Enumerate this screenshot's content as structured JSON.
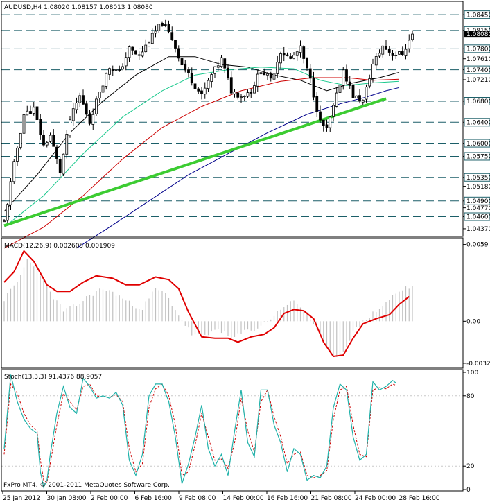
{
  "chart_data": {
    "type": "candlestick",
    "main": {
      "title": "AUDUSD,H4",
      "ohlc_readout": [
        "1.08020",
        "1.08157",
        "1.08013",
        "1.08080"
      ],
      "ylim": [
        1.0425,
        1.0865
      ],
      "level_lines": [
        1.0845,
        1.0815,
        1.078,
        1.074,
        1.068,
        1.064,
        1.06,
        1.0575,
        1.0535,
        1.049,
        1.046
      ],
      "tick_labels": [
        "1.08450",
        "1.08150",
        "1.07800",
        "1.07610",
        "1.07400",
        "1.07210",
        "1.06800",
        "1.06400",
        "1.06000",
        "1.05750",
        "1.05350",
        "1.05180",
        "1.04900",
        "1.04770",
        "1.04600",
        "1.04370"
      ],
      "boxed_labels": [
        "1.08450",
        "1.08150",
        "1.07800",
        "1.07400",
        "1.06800",
        "1.06400",
        "1.06000",
        "1.05750",
        "1.05350",
        "1.04900",
        "1.04600"
      ],
      "current_price": "1.08080",
      "trendline": {
        "start": [
          0,
          1.0443
        ],
        "end": [
          116,
          1.0685
        ]
      },
      "key_prices": [
        [
          0,
          1.045
        ],
        [
          3,
          1.056
        ],
        [
          6,
          1.0655
        ],
        [
          9,
          1.0665
        ],
        [
          12,
          1.0595
        ],
        [
          14,
          1.0615
        ],
        [
          17,
          1.0545
        ],
        [
          20,
          1.0645
        ],
        [
          23,
          1.069
        ],
        [
          26,
          1.064
        ],
        [
          29,
          1.07
        ],
        [
          32,
          1.0745
        ],
        [
          35,
          1.0735
        ],
        [
          38,
          1.078
        ],
        [
          41,
          1.0765
        ],
        [
          44,
          1.0795
        ],
        [
          48,
          1.083
        ],
        [
          51,
          1.08
        ],
        [
          54,
          1.075
        ],
        [
          57,
          1.072
        ],
        [
          60,
          1.069
        ],
        [
          63,
          1.073
        ],
        [
          66,
          1.076
        ],
        [
          69,
          1.07
        ],
        [
          72,
          1.069
        ],
        [
          75,
          1.07
        ],
        [
          78,
          1.074
        ],
        [
          81,
          1.072
        ],
        [
          84,
          1.0775
        ],
        [
          87,
          1.076
        ],
        [
          90,
          1.078
        ],
        [
          93,
          1.072
        ],
        [
          96,
          1.064
        ],
        [
          98,
          1.0625
        ],
        [
          101,
          1.069
        ],
        [
          103,
          1.074
        ],
        [
          106,
          1.069
        ],
        [
          109,
          1.068
        ],
        [
          112,
          1.075
        ],
        [
          115,
          1.0785
        ],
        [
          118,
          1.077
        ],
        [
          121,
          1.077
        ],
        [
          124,
          1.0808
        ]
      ],
      "moving_averages": [
        {
          "color": "#000000",
          "points": [
            [
              0,
              1.047
            ],
            [
              10,
              1.054
            ],
            [
              20,
              1.062
            ],
            [
              30,
              1.068
            ],
            [
              40,
              1.073
            ],
            [
              50,
              1.0765
            ],
            [
              58,
              1.0765
            ],
            [
              66,
              1.075
            ],
            [
              74,
              1.0745
            ],
            [
              82,
              1.073
            ],
            [
              90,
              1.072
            ],
            [
              98,
              1.07
            ],
            [
              106,
              1.0715
            ],
            [
              114,
              1.0725
            ],
            [
              120,
              1.0735
            ]
          ]
        },
        {
          "color": "#19c88c",
          "points": [
            [
              0,
              1.044
            ],
            [
              12,
              1.05
            ],
            [
              24,
              1.058
            ],
            [
              36,
              1.065
            ],
            [
              48,
              1.07
            ],
            [
              58,
              1.073
            ],
            [
              68,
              1.074
            ],
            [
              78,
              1.0745
            ],
            [
              88,
              1.0742
            ],
            [
              96,
              1.072
            ],
            [
              104,
              1.071
            ],
            [
              112,
              1.0715
            ],
            [
              120,
              1.0718
            ]
          ]
        },
        {
          "color": "#cc0000",
          "points": [
            [
              0,
              1.04
            ],
            [
              12,
              1.044
            ],
            [
              24,
              1.05
            ],
            [
              36,
              1.057
            ],
            [
              48,
              1.063
            ],
            [
              60,
              1.067
            ],
            [
              72,
              1.07
            ],
            [
              84,
              1.0718
            ],
            [
              94,
              1.0725
            ],
            [
              104,
              1.0725
            ],
            [
              112,
              1.072
            ],
            [
              120,
              1.0722
            ]
          ]
        },
        {
          "color": "#00008b",
          "points": [
            [
              22,
              1.04
            ],
            [
              32,
              1.044
            ],
            [
              44,
              1.049
            ],
            [
              56,
              1.054
            ],
            [
              68,
              1.058
            ],
            [
              80,
              1.062
            ],
            [
              92,
              1.0655
            ],
            [
              102,
              1.0675
            ],
            [
              110,
              1.0688
            ],
            [
              116,
              1.07
            ],
            [
              120,
              1.0706
            ]
          ]
        }
      ]
    },
    "macd": {
      "label": "MACD(12,26,9) 0.002605 0.001909",
      "ylim": [
        -0.0035,
        0.0062
      ],
      "tick_labels": [
        "0.0059",
        "0.00",
        "-0.00323"
      ],
      "bar_key": [
        [
          0,
          0.0017
        ],
        [
          4,
          0.003
        ],
        [
          7,
          0.0047
        ],
        [
          10,
          0.0042
        ],
        [
          14,
          0.0022
        ],
        [
          18,
          0.0008
        ],
        [
          22,
          0.0012
        ],
        [
          26,
          0.002
        ],
        [
          30,
          0.0025
        ],
        [
          34,
          0.0021
        ],
        [
          38,
          0.0014
        ],
        [
          42,
          0.001
        ],
        [
          46,
          0.0025
        ],
        [
          49,
          0.0021
        ],
        [
          53,
          0.0005
        ],
        [
          57,
          -0.001
        ],
        [
          61,
          -0.0012
        ],
        [
          65,
          -0.0005
        ],
        [
          69,
          -0.0014
        ],
        [
          73,
          -0.0008
        ],
        [
          77,
          -0.0005
        ],
        [
          81,
          0.0002
        ],
        [
          85,
          0.0012
        ],
        [
          88,
          0.0015
        ],
        [
          92,
          0.0007
        ],
        [
          96,
          -0.0012
        ],
        [
          99,
          -0.0025
        ],
        [
          102,
          -0.0027
        ],
        [
          106,
          -0.0009
        ],
        [
          110,
          0.0002
        ],
        [
          114,
          0.001
        ],
        [
          118,
          0.0019
        ],
        [
          122,
          0.0026
        ]
      ],
      "signal_key": [
        [
          0,
          0.003
        ],
        [
          3,
          0.0038
        ],
        [
          6,
          0.0054
        ],
        [
          9,
          0.0046
        ],
        [
          13,
          0.0028
        ],
        [
          16,
          0.0023
        ],
        [
          20,
          0.0023
        ],
        [
          24,
          0.003
        ],
        [
          28,
          0.0035
        ],
        [
          33,
          0.0033
        ],
        [
          37,
          0.0028
        ],
        [
          41,
          0.0028
        ],
        [
          46,
          0.0034
        ],
        [
          50,
          0.0032
        ],
        [
          53,
          0.0025
        ],
        [
          56,
          0.0007
        ],
        [
          60,
          -0.0012
        ],
        [
          64,
          -0.0013
        ],
        [
          68,
          -0.0013
        ],
        [
          71,
          -0.0016
        ],
        [
          75,
          -0.0012
        ],
        [
          79,
          -0.001
        ],
        [
          82,
          -0.0005
        ],
        [
          85,
          0.0006
        ],
        [
          88,
          0.0009
        ],
        [
          91,
          0.0008
        ],
        [
          94,
          0.0002
        ],
        [
          97,
          -0.0016
        ],
        [
          100,
          -0.0027
        ],
        [
          103,
          -0.0026
        ],
        [
          106,
          -0.0013
        ],
        [
          109,
          -0.0002
        ],
        [
          113,
          0.0002
        ],
        [
          117,
          0.0005
        ],
        [
          120,
          0.0013
        ],
        [
          123,
          0.0019
        ]
      ]
    },
    "stoch": {
      "label": "Stoch(13,3,3) 91.4376 88.9057",
      "ylim": [
        0,
        100
      ],
      "tick_labels": [
        "100",
        "80",
        "20",
        "0"
      ],
      "k_key": [
        [
          0,
          35
        ],
        [
          2,
          98
        ],
        [
          4,
          75
        ],
        [
          6,
          60
        ],
        [
          8,
          52
        ],
        [
          10,
          48
        ],
        [
          11,
          15
        ],
        [
          12,
          2
        ],
        [
          13,
          8
        ],
        [
          14,
          30
        ],
        [
          16,
          65
        ],
        [
          18,
          88
        ],
        [
          20,
          70
        ],
        [
          22,
          65
        ],
        [
          24,
          95
        ],
        [
          26,
          88
        ],
        [
          28,
          78
        ],
        [
          30,
          80
        ],
        [
          32,
          78
        ],
        [
          34,
          83
        ],
        [
          36,
          72
        ],
        [
          38,
          25
        ],
        [
          40,
          12
        ],
        [
          42,
          30
        ],
        [
          44,
          80
        ],
        [
          46,
          90
        ],
        [
          48,
          90
        ],
        [
          50,
          75
        ],
        [
          52,
          45
        ],
        [
          54,
          5
        ],
        [
          56,
          22
        ],
        [
          58,
          45
        ],
        [
          60,
          72
        ],
        [
          62,
          35
        ],
        [
          64,
          20
        ],
        [
          66,
          30
        ],
        [
          68,
          12
        ],
        [
          70,
          50
        ],
        [
          72,
          85
        ],
        [
          74,
          40
        ],
        [
          76,
          28
        ],
        [
          78,
          85
        ],
        [
          80,
          85
        ],
        [
          82,
          55
        ],
        [
          84,
          40
        ],
        [
          86,
          15
        ],
        [
          88,
          35
        ],
        [
          90,
          30
        ],
        [
          92,
          8
        ],
        [
          94,
          12
        ],
        [
          96,
          10
        ],
        [
          98,
          20
        ],
        [
          100,
          70
        ],
        [
          102,
          90
        ],
        [
          104,
          85
        ],
        [
          106,
          45
        ],
        [
          108,
          25
        ],
        [
          110,
          30
        ],
        [
          112,
          92
        ],
        [
          114,
          85
        ],
        [
          116,
          88
        ],
        [
          118,
          93
        ],
        [
          119,
          91
        ]
      ],
      "d_key": [
        [
          0,
          30
        ],
        [
          2,
          90
        ],
        [
          4,
          82
        ],
        [
          6,
          65
        ],
        [
          8,
          55
        ],
        [
          10,
          50
        ],
        [
          11,
          25
        ],
        [
          12,
          8
        ],
        [
          13,
          6
        ],
        [
          14,
          22
        ],
        [
          16,
          55
        ],
        [
          18,
          82
        ],
        [
          20,
          75
        ],
        [
          22,
          68
        ],
        [
          24,
          88
        ],
        [
          26,
          90
        ],
        [
          28,
          80
        ],
        [
          30,
          79
        ],
        [
          32,
          79
        ],
        [
          34,
          81
        ],
        [
          36,
          75
        ],
        [
          38,
          35
        ],
        [
          40,
          15
        ],
        [
          42,
          22
        ],
        [
          44,
          70
        ],
        [
          46,
          86
        ],
        [
          48,
          90
        ],
        [
          50,
          80
        ],
        [
          52,
          55
        ],
        [
          54,
          12
        ],
        [
          56,
          15
        ],
        [
          58,
          38
        ],
        [
          60,
          65
        ],
        [
          62,
          45
        ],
        [
          64,
          25
        ],
        [
          66,
          26
        ],
        [
          68,
          18
        ],
        [
          70,
          40
        ],
        [
          72,
          78
        ],
        [
          74,
          50
        ],
        [
          76,
          32
        ],
        [
          78,
          75
        ],
        [
          80,
          85
        ],
        [
          82,
          62
        ],
        [
          84,
          45
        ],
        [
          86,
          22
        ],
        [
          88,
          30
        ],
        [
          90,
          32
        ],
        [
          92,
          12
        ],
        [
          94,
          10
        ],
        [
          96,
          12
        ],
        [
          98,
          16
        ],
        [
          100,
          60
        ],
        [
          102,
          85
        ],
        [
          104,
          88
        ],
        [
          106,
          55
        ],
        [
          108,
          30
        ],
        [
          110,
          28
        ],
        [
          112,
          85
        ],
        [
          114,
          87
        ],
        [
          116,
          86
        ],
        [
          118,
          90
        ],
        [
          119,
          89
        ]
      ]
    },
    "x_labels": [
      "25 Jan 2012",
      "30 Jan 08:00",
      "2 Feb 00:00",
      "6 Feb 16:00",
      "9 Feb 08:00",
      "14 Feb 00:00",
      "16 Feb 16:00",
      "21 Feb 08:00",
      "24 Feb 00:00",
      "28 Feb 16:00"
    ],
    "copyright": "FxPro MT4, © 2001-2011 MetaQuotes Software Corp.",
    "colors": {
      "trendline": "#3ccc32",
      "level_line": "#1b5e68",
      "macd_bars": "#c0c0c0",
      "macd_signal": "#e00000",
      "stoch_main": "#20b2aa",
      "stoch_signal": "#cc0000"
    }
  }
}
